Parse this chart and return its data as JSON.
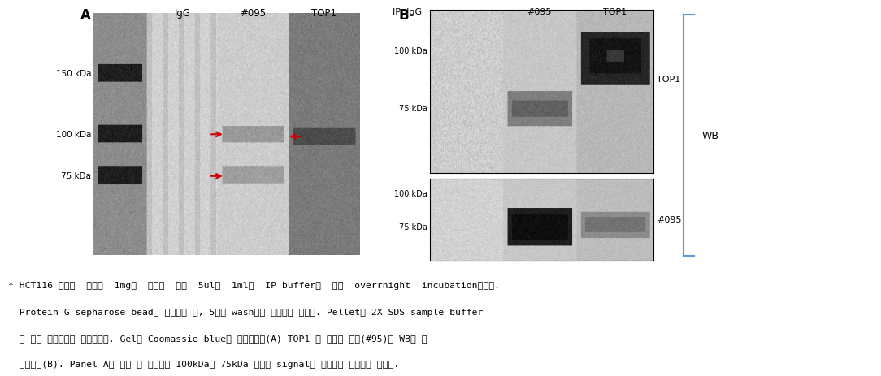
{
  "panel_A_label": "A",
  "panel_B_label": "B",
  "panel_A_col_labels": [
    "IgG",
    "#095",
    "TOP1"
  ],
  "panel_B_ip_label": "IP: IgG",
  "panel_B_col_labels": [
    "#095",
    "TOP1"
  ],
  "panel_A_MW_labels": [
    "150 kDa",
    "100 kDa",
    "75 kDa"
  ],
  "panel_B_top_MW_labels": [
    "100 kDa",
    "75 kDa"
  ],
  "panel_B_bot_MW_labels": [
    "100 kDa",
    "75 kDa"
  ],
  "panel_B_top_right": "TOP1",
  "panel_B_bot_right": "#095",
  "panel_WB_label": "WB",
  "arrow_color": "#cc0000",
  "bracket_color": "#5b9bd5",
  "caption_lines": [
    "* HCT116 세포의  단백질  1mg과  합성된  항체  5ul을  1ml의  IP buffer에  넣고  overrnight  incubation하였음.",
    "  Protein G sepharose bead로 침천시킨 후, 5차례 wash하여 원심분리 하였음. Pellet에 2X SDS sample buffer",
    "  를 넣고 전기영동을 실시하였음. Gel을 Coomassie blue로 염색하거나(A) TOP1 및 합성된 항체(#95)로 WB을 실",
    "  시하였음(B). Panel A의 붉은 색 화살표는 100kDa와 75kDa 부근의 signal에 해당하는 단백질을 나타냄."
  ]
}
